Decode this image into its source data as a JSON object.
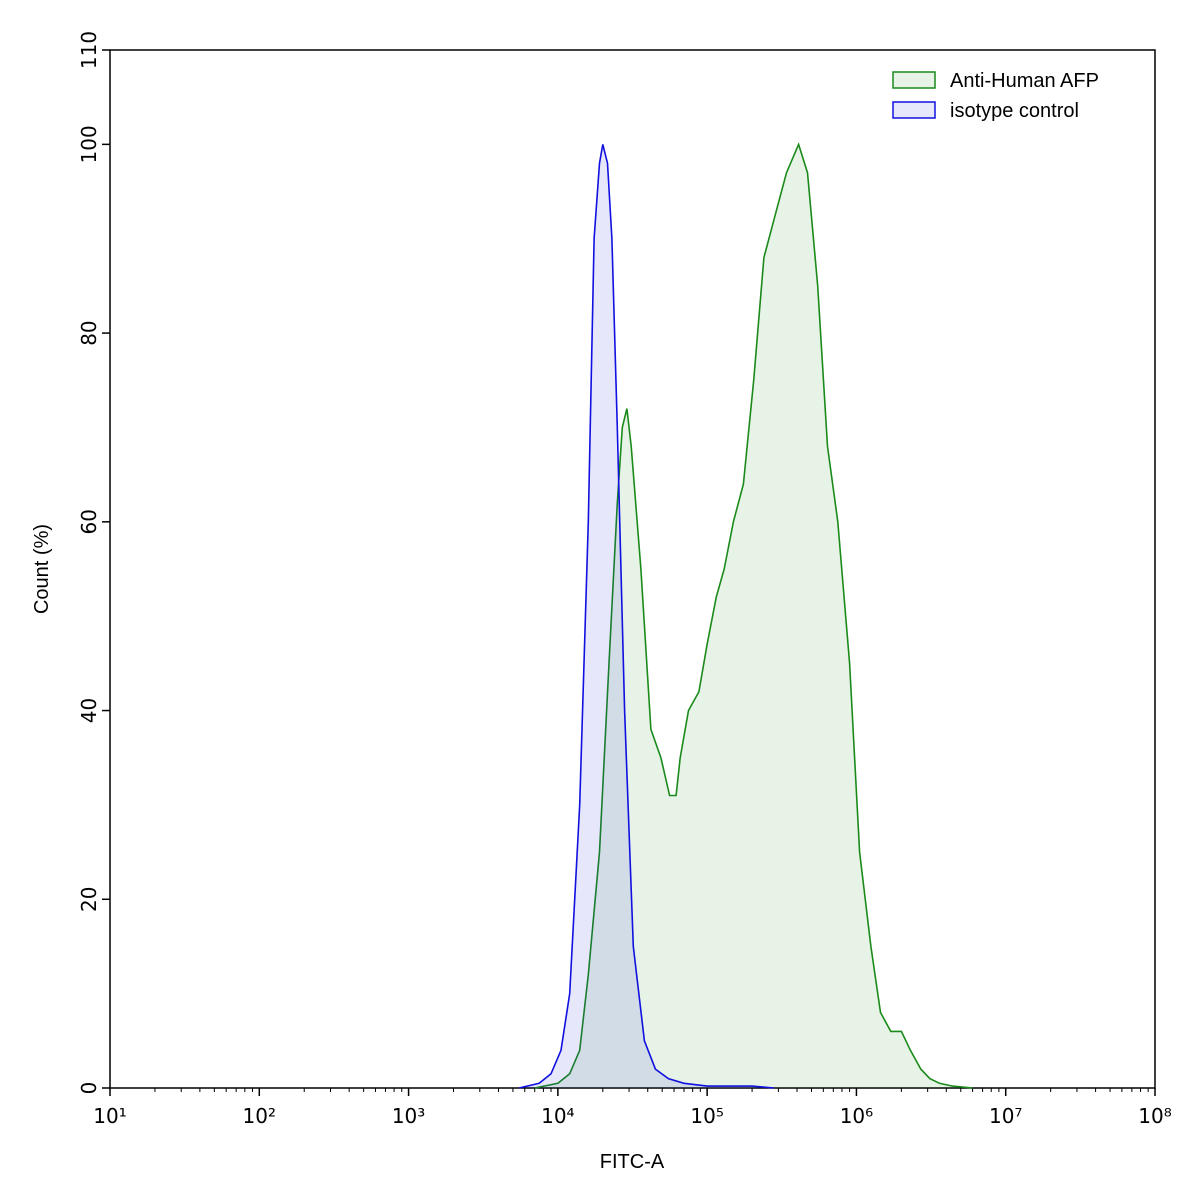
{
  "chart_data": {
    "type": "area",
    "xlabel": "FITC-A",
    "ylabel": "Count  (%)",
    "xscale": "log",
    "legend": "upper right",
    "xlim": [
      10,
      100000000
    ],
    "ylim": [
      0,
      110
    ],
    "xticks": [
      {
        "value": 10,
        "label": "10¹"
      },
      {
        "value": 100,
        "label": "10²"
      },
      {
        "value": 1000,
        "label": "10³"
      },
      {
        "value": 10000,
        "label": "10⁴"
      },
      {
        "value": 100000,
        "label": "10⁵"
      },
      {
        "value": 1000000,
        "label": "10⁶"
      },
      {
        "value": 10000000,
        "label": "10⁷"
      },
      {
        "value": 100000000,
        "label": "10⁸"
      }
    ],
    "yticks": [
      0,
      20,
      40,
      60,
      80,
      100,
      110
    ],
    "series": [
      {
        "name": "Anti-Human AFP",
        "color": "#1a8a1a",
        "x": [
          7000,
          10000,
          12000,
          14000,
          16000,
          19000,
          22000,
          25000,
          27000,
          29000,
          31000,
          36000,
          42000,
          49000,
          56000,
          62000,
          66000,
          75000,
          88000,
          100000,
          115000,
          130000,
          150000,
          175000,
          205000,
          240000,
          280000,
          340000,
          410000,
          470000,
          550000,
          640000,
          750000,
          900000,
          1050000,
          1250000,
          1450000,
          1700000,
          2000000,
          2300000,
          2700000,
          3100000,
          3600000,
          4400000,
          6000000
        ],
        "values": [
          0,
          0.5,
          1.5,
          4,
          12,
          25,
          45,
          62,
          70,
          72,
          68,
          55,
          38,
          35,
          31,
          31,
          35,
          40,
          42,
          47,
          52,
          55,
          60,
          64,
          75,
          88,
          92,
          97,
          100,
          97,
          85,
          68,
          60,
          45,
          25,
          15,
          8,
          6,
          6,
          4,
          2,
          1,
          0.5,
          0.2,
          0
        ]
      },
      {
        "name": "isotype control",
        "color": "#1010e0",
        "x": [
          5500,
          7500,
          9000,
          10500,
          12000,
          14000,
          16000,
          17500,
          19000,
          20000,
          21500,
          23000,
          25000,
          28000,
          32000,
          38000,
          45000,
          55000,
          70000,
          100000,
          200000,
          280000
        ],
        "values": [
          0,
          0.5,
          1.5,
          4,
          10,
          30,
          60,
          90,
          98,
          100,
          98,
          90,
          70,
          40,
          15,
          5,
          2,
          1,
          0.5,
          0.2,
          0.2,
          0
        ]
      }
    ]
  }
}
